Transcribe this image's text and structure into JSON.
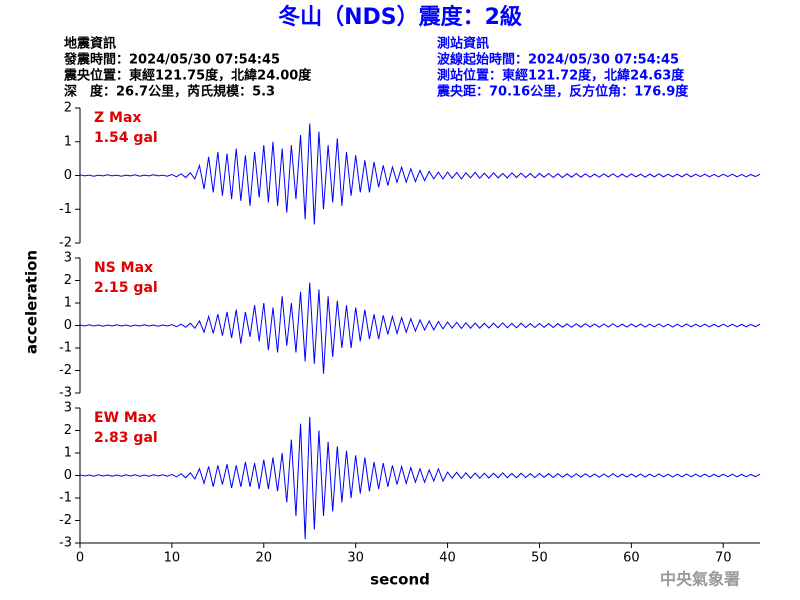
{
  "header": {
    "title": "冬山（NDS）震度：2級",
    "left": [
      "地震資訊",
      "發震時間：2024/05/30 07:54:45",
      "震央位置：東經121.75度，北緯24.00度",
      "深　度：26.7公里，芮氏規模：5.3"
    ],
    "right": [
      "測站資訊",
      "波線起始時間：2024/05/30 07:54:45",
      "測站位置：東經121.72度，北緯24.63度",
      "震央距：70.16公里，反方位角：176.9度"
    ]
  },
  "ylabel": "acceleration",
  "footer": "中央氣象署",
  "chart_data": [
    {
      "type": "line",
      "label": "Z Max",
      "annotation": "1.54 gal",
      "color": "#0000ff",
      "x": [
        0,
        0.5,
        1,
        1.5,
        2,
        2.5,
        3,
        3.5,
        4,
        4.5,
        5,
        5.5,
        6,
        6.5,
        7,
        7.5,
        8,
        8.5,
        9,
        9.5,
        10,
        10.5,
        11,
        11.5,
        12,
        12.5,
        13,
        13.5,
        14,
        14.5,
        15,
        15.5,
        16,
        16.5,
        17,
        17.5,
        18,
        18.5,
        19,
        19.5,
        20,
        20.5,
        21,
        21.5,
        22,
        22.5,
        23,
        23.5,
        24,
        24.5,
        25,
        25.5,
        26,
        26.5,
        27,
        27.5,
        28,
        28.5,
        29,
        29.5,
        30,
        30.5,
        31,
        31.5,
        32,
        32.5,
        33,
        33.5,
        34,
        34.5,
        35,
        35.5,
        36,
        36.5,
        37,
        37.5,
        38,
        38.5,
        39,
        39.5,
        40,
        40.5,
        41,
        41.5,
        42,
        42.5,
        43,
        43.5,
        44,
        44.5,
        45,
        45.5,
        46,
        46.5,
        47,
        47.5,
        48,
        48.5,
        49,
        49.5,
        50,
        50.5,
        51,
        51.5,
        52,
        52.5,
        53,
        53.5,
        54,
        54.5,
        55,
        55.5,
        56,
        56.5,
        57,
        57.5,
        58,
        58.5,
        59,
        59.5,
        60,
        60.5,
        61,
        61.5,
        62,
        62.5,
        63,
        63.5,
        64,
        64.5,
        65,
        65.5,
        66,
        66.5,
        67,
        67.5,
        68,
        68.5,
        69,
        69.5,
        70,
        70.5,
        71,
        71.5,
        72,
        72.5,
        73,
        73.5,
        74
      ],
      "values": [
        0.02,
        -0.01,
        0.01,
        -0.02,
        0.01,
        -0.01,
        0.02,
        -0.01,
        0.01,
        -0.02,
        0.01,
        -0.01,
        0.02,
        -0.02,
        0.01,
        -0.01,
        0.02,
        -0.01,
        0.01,
        -0.02,
        0.03,
        -0.04,
        0.05,
        -0.06,
        0.08,
        -0.1,
        0.3,
        -0.4,
        0.55,
        -0.5,
        0.7,
        -0.6,
        0.65,
        -0.7,
        0.8,
        -0.75,
        0.6,
        -0.9,
        0.7,
        -0.65,
        0.9,
        -0.8,
        1.0,
        -0.9,
        0.8,
        -1.1,
        0.9,
        -0.7,
        1.2,
        -1.3,
        1.54,
        -1.45,
        1.3,
        -1.0,
        0.9,
        -0.8,
        1.1,
        -0.9,
        0.7,
        -0.6,
        0.6,
        -0.5,
        0.45,
        -0.5,
        0.4,
        -0.35,
        0.3,
        -0.3,
        0.25,
        -0.2,
        0.25,
        -0.2,
        0.2,
        -0.18,
        0.15,
        -0.15,
        0.12,
        -0.1,
        0.1,
        -0.1,
        0.1,
        -0.08,
        0.09,
        -0.1,
        0.08,
        -0.07,
        0.09,
        -0.08,
        0.07,
        -0.08,
        0.08,
        -0.07,
        0.06,
        -0.07,
        0.08,
        -0.06,
        0.07,
        -0.06,
        0.06,
        -0.07,
        0.06,
        -0.05,
        0.06,
        -0.06,
        0.05,
        -0.06,
        0.05,
        -0.05,
        0.06,
        -0.05,
        0.05,
        -0.05,
        0.04,
        -0.05,
        0.05,
        -0.04,
        0.05,
        -0.05,
        0.04,
        -0.05,
        0.05,
        -0.04,
        0.04,
        -0.05,
        0.04,
        -0.04,
        0.05,
        -0.04,
        0.04,
        -0.04,
        0.04,
        -0.04,
        0.05,
        -0.04,
        0.04,
        -0.03,
        0.04,
        -0.04,
        0.03,
        -0.04,
        0.04,
        -0.03,
        0.04,
        -0.04,
        0.03,
        -0.04,
        0.03,
        -0.03,
        0.04
      ],
      "xlim": [
        0,
        74
      ],
      "ylim": [
        -2,
        2
      ],
      "yticks": [
        -2,
        -1,
        0,
        1,
        2
      ]
    },
    {
      "type": "line",
      "label": "NS Max",
      "annotation": "2.15 gal",
      "color": "#0000ff",
      "x": [
        0,
        0.5,
        1,
        1.5,
        2,
        2.5,
        3,
        3.5,
        4,
        4.5,
        5,
        5.5,
        6,
        6.5,
        7,
        7.5,
        8,
        8.5,
        9,
        9.5,
        10,
        10.5,
        11,
        11.5,
        12,
        12.5,
        13,
        13.5,
        14,
        14.5,
        15,
        15.5,
        16,
        16.5,
        17,
        17.5,
        18,
        18.5,
        19,
        19.5,
        20,
        20.5,
        21,
        21.5,
        22,
        22.5,
        23,
        23.5,
        24,
        24.5,
        25,
        25.5,
        26,
        26.5,
        27,
        27.5,
        28,
        28.5,
        29,
        29.5,
        30,
        30.5,
        31,
        31.5,
        32,
        32.5,
        33,
        33.5,
        34,
        34.5,
        35,
        35.5,
        36,
        36.5,
        37,
        37.5,
        38,
        38.5,
        39,
        39.5,
        40,
        40.5,
        41,
        41.5,
        42,
        42.5,
        43,
        43.5,
        44,
        44.5,
        45,
        45.5,
        46,
        46.5,
        47,
        47.5,
        48,
        48.5,
        49,
        49.5,
        50,
        50.5,
        51,
        51.5,
        52,
        52.5,
        53,
        53.5,
        54,
        54.5,
        55,
        55.5,
        56,
        56.5,
        57,
        57.5,
        58,
        58.5,
        59,
        59.5,
        60,
        60.5,
        61,
        61.5,
        62,
        62.5,
        63,
        63.5,
        64,
        64.5,
        65,
        65.5,
        66,
        66.5,
        67,
        67.5,
        68,
        68.5,
        69,
        69.5,
        70,
        70.5,
        71,
        71.5,
        72,
        72.5,
        73,
        73.5,
        74
      ],
      "values": [
        0.02,
        -0.02,
        0.03,
        -0.02,
        0.02,
        -0.03,
        0.02,
        -0.02,
        0.03,
        -0.02,
        0.02,
        -0.03,
        0.02,
        -0.02,
        0.03,
        -0.02,
        0.02,
        -0.03,
        0.02,
        -0.02,
        0.04,
        -0.05,
        0.06,
        -0.08,
        0.1,
        -0.12,
        0.2,
        -0.3,
        0.4,
        -0.35,
        0.5,
        -0.45,
        0.6,
        -0.55,
        0.7,
        -0.8,
        0.6,
        -0.5,
        0.9,
        -0.7,
        1.0,
        -1.1,
        0.8,
        -1.2,
        1.3,
        -0.9,
        1.0,
        -1.2,
        1.5,
        -1.6,
        1.9,
        -1.7,
        1.6,
        -2.15,
        1.3,
        -1.4,
        1.1,
        -1.0,
        0.9,
        -1.0,
        0.8,
        -0.7,
        0.7,
        -0.6,
        0.5,
        -0.6,
        0.45,
        -0.4,
        0.4,
        -0.35,
        0.35,
        -0.3,
        0.3,
        -0.25,
        0.25,
        -0.2,
        0.2,
        -0.2,
        0.18,
        -0.15,
        0.15,
        -0.12,
        0.14,
        -0.13,
        0.12,
        -0.12,
        0.11,
        -0.12,
        0.1,
        -0.11,
        0.1,
        -0.1,
        0.12,
        -0.1,
        0.09,
        -0.1,
        0.1,
        -0.09,
        0.08,
        -0.09,
        0.09,
        -0.08,
        0.08,
        -0.09,
        0.08,
        -0.08,
        0.07,
        -0.08,
        0.08,
        -0.07,
        0.08,
        -0.07,
        0.07,
        -0.08,
        0.07,
        -0.07,
        0.08,
        -0.07,
        0.06,
        -0.07,
        0.07,
        -0.06,
        0.07,
        -0.07,
        0.06,
        -0.06,
        0.07,
        -0.06,
        0.06,
        -0.07,
        0.06,
        -0.06,
        0.07,
        -0.06,
        0.06,
        -0.05,
        0.06,
        -0.06,
        0.05,
        -0.06,
        0.06,
        -0.05,
        0.06,
        -0.06,
        0.05,
        -0.06,
        0.05,
        -0.05,
        0.06
      ],
      "xlim": [
        0,
        74
      ],
      "ylim": [
        -3,
        3
      ],
      "yticks": [
        -3,
        -2,
        -1,
        0,
        1,
        2,
        3
      ]
    },
    {
      "type": "line",
      "label": "EW Max",
      "annotation": "2.83 gal",
      "color": "#0000ff",
      "xlabel": "second",
      "x": [
        0,
        0.5,
        1,
        1.5,
        2,
        2.5,
        3,
        3.5,
        4,
        4.5,
        5,
        5.5,
        6,
        6.5,
        7,
        7.5,
        8,
        8.5,
        9,
        9.5,
        10,
        10.5,
        11,
        11.5,
        12,
        12.5,
        13,
        13.5,
        14,
        14.5,
        15,
        15.5,
        16,
        16.5,
        17,
        17.5,
        18,
        18.5,
        19,
        19.5,
        20,
        20.5,
        21,
        21.5,
        22,
        22.5,
        23,
        23.5,
        24,
        24.5,
        25,
        25.5,
        26,
        26.5,
        27,
        27.5,
        28,
        28.5,
        29,
        29.5,
        30,
        30.5,
        31,
        31.5,
        32,
        32.5,
        33,
        33.5,
        34,
        34.5,
        35,
        35.5,
        36,
        36.5,
        37,
        37.5,
        38,
        38.5,
        39,
        39.5,
        40,
        40.5,
        41,
        41.5,
        42,
        42.5,
        43,
        43.5,
        44,
        44.5,
        45,
        45.5,
        46,
        46.5,
        47,
        47.5,
        48,
        48.5,
        49,
        49.5,
        50,
        50.5,
        51,
        51.5,
        52,
        52.5,
        53,
        53.5,
        54,
        54.5,
        55,
        55.5,
        56,
        56.5,
        57,
        57.5,
        58,
        58.5,
        59,
        59.5,
        60,
        60.5,
        61,
        61.5,
        62,
        62.5,
        63,
        63.5,
        64,
        64.5,
        65,
        65.5,
        66,
        66.5,
        67,
        67.5,
        68,
        68.5,
        69,
        69.5,
        70,
        70.5,
        71,
        71.5,
        72,
        72.5,
        73,
        73.5,
        74
      ],
      "values": [
        0.03,
        -0.02,
        0.02,
        -0.03,
        0.03,
        -0.02,
        0.02,
        -0.03,
        0.02,
        -0.03,
        0.03,
        -0.02,
        0.03,
        -0.03,
        0.02,
        -0.03,
        0.03,
        -0.02,
        0.03,
        -0.03,
        0.05,
        -0.06,
        0.08,
        -0.1,
        0.12,
        -0.15,
        0.3,
        -0.35,
        0.4,
        -0.5,
        0.45,
        -0.4,
        0.5,
        -0.55,
        0.45,
        -0.5,
        0.6,
        -0.5,
        0.55,
        -0.6,
        0.7,
        -0.6,
        0.8,
        -0.7,
        1.0,
        -1.2,
        1.6,
        -1.8,
        2.3,
        -2.83,
        2.6,
        -2.4,
        2.0,
        -1.8,
        1.5,
        -1.6,
        1.3,
        -1.2,
        1.1,
        -1.0,
        0.9,
        -0.8,
        0.8,
        -0.7,
        0.6,
        -0.6,
        0.55,
        -0.5,
        0.45,
        -0.4,
        0.4,
        -0.35,
        0.35,
        -0.3,
        0.3,
        -0.3,
        0.25,
        -0.25,
        0.3,
        -0.25,
        0.15,
        -0.12,
        0.14,
        -0.13,
        0.12,
        -0.12,
        0.11,
        -0.12,
        0.1,
        -0.11,
        0.1,
        -0.1,
        0.12,
        -0.1,
        0.09,
        -0.1,
        0.1,
        -0.09,
        0.08,
        -0.09,
        0.09,
        -0.08,
        0.08,
        -0.09,
        0.08,
        -0.08,
        0.07,
        -0.08,
        0.08,
        -0.07,
        0.08,
        -0.07,
        0.07,
        -0.08,
        0.07,
        -0.07,
        0.08,
        -0.07,
        0.06,
        -0.07,
        0.07,
        -0.06,
        0.07,
        -0.07,
        0.06,
        -0.06,
        0.07,
        -0.06,
        0.06,
        -0.07,
        0.06,
        -0.06,
        0.07,
        -0.06,
        0.06,
        -0.05,
        0.06,
        -0.06,
        0.05,
        -0.06,
        0.06,
        -0.05,
        0.06,
        -0.06,
        0.05,
        -0.06,
        0.05,
        -0.05,
        0.06
      ],
      "xlim": [
        0,
        74
      ],
      "ylim": [
        -3,
        3
      ],
      "yticks": [
        -3,
        -2,
        -1,
        0,
        1,
        2,
        3
      ],
      "xticks": [
        0,
        10,
        20,
        30,
        40,
        50,
        60,
        70
      ]
    }
  ]
}
